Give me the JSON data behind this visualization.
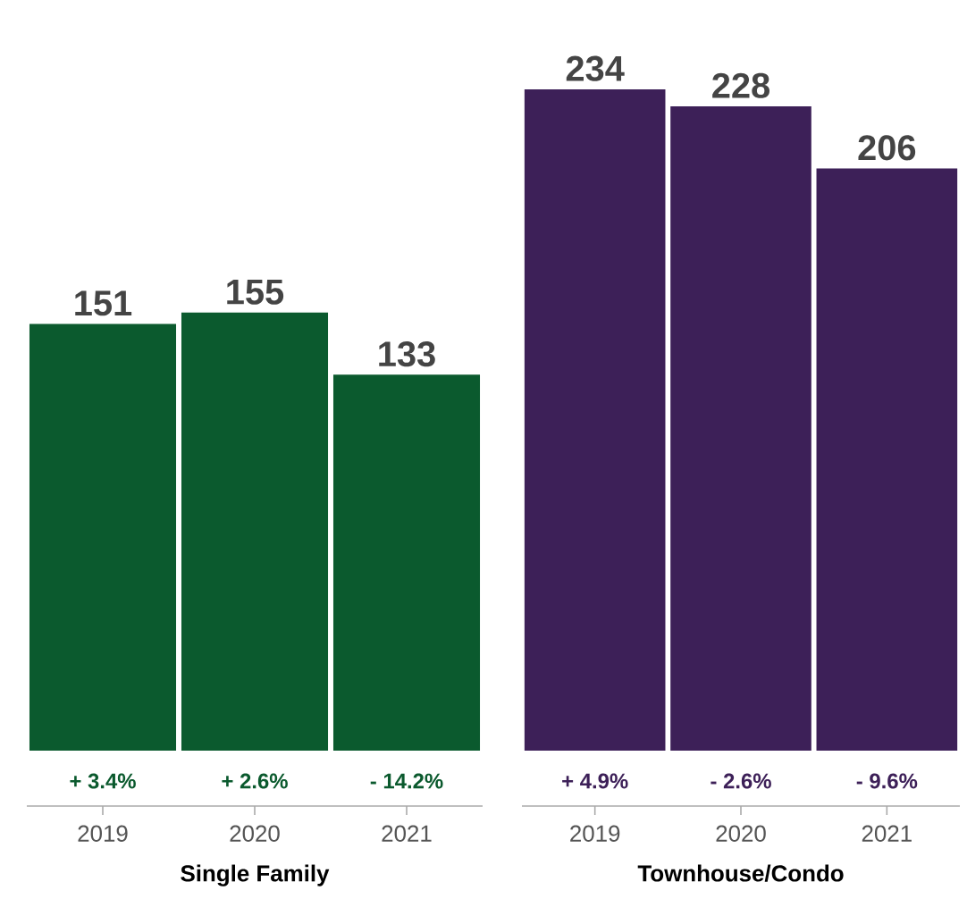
{
  "chart_data": [
    {
      "type": "bar",
      "categories": [
        "2019",
        "2020",
        "2021"
      ],
      "values": [
        151,
        155,
        133
      ],
      "color": "#0b5a2e",
      "data_labels": true,
      "xlabel": "Single Family",
      "tick_labels": "x",
      "annotations": [
        "+ 3.4%",
        "+ 2.6%",
        "- 14.2%"
      ]
    },
    {
      "type": "bar",
      "categories": [
        "2019",
        "2020",
        "2021"
      ],
      "values": [
        234,
        228,
        206
      ],
      "color": "#3d2058",
      "data_labels": true,
      "xlabel": "Townhouse/Condo",
      "tick_labels": "x",
      "annotations": [
        "+ 4.9%",
        "- 2.6%",
        "- 9.6%"
      ]
    }
  ]
}
